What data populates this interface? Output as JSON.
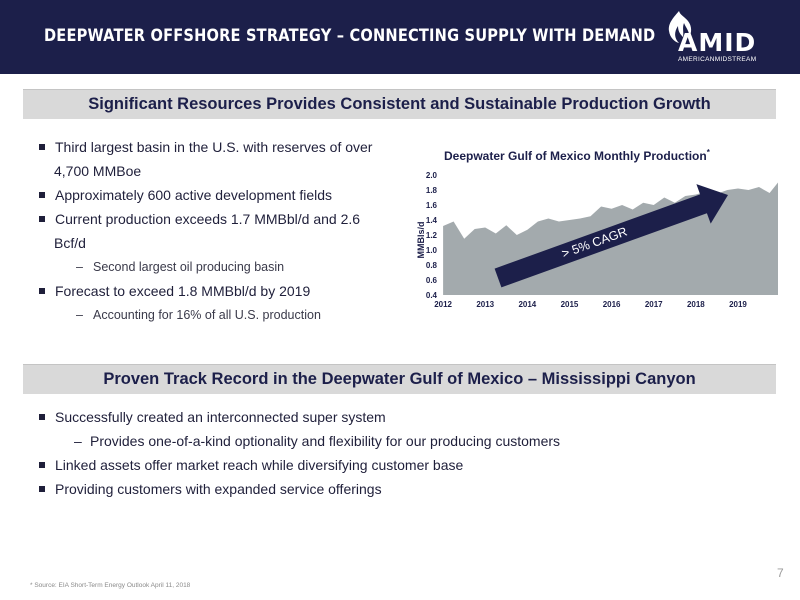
{
  "header": {
    "title": "DEEPWATER OFFSHORE STRATEGY – CONNECTING SUPPLY WITH DEMAND",
    "logo_text": "AMID",
    "logo_subtext": "AMERICANMIDSTREAM"
  },
  "section1": {
    "heading": "Significant Resources Provides Consistent and Sustainable Production Growth",
    "bullets": [
      "Third largest basin in the U.S. with reserves of over",
      "4,700 MMBoe",
      "Approximately 600 active development fields",
      "Current production exceeds 1.7 MMBbl/d and 2.6",
      "Bcf/d",
      "Second largest oil producing basin",
      "Forecast to exceed 1.8 MMBbl/d by 2019",
      "Accounting for 16% of all U.S. production"
    ]
  },
  "chart_data": {
    "type": "area",
    "title": "Deepwater Gulf of Mexico Monthly Production",
    "title_marker": "*",
    "ylabel": "MMBls/d",
    "xlabel": "",
    "ylim": [
      0.4,
      2.0
    ],
    "yticks": [
      "2.0",
      "1.8",
      "1.6",
      "1.4",
      "1.2",
      "1.0",
      "0.8",
      "0.6",
      "0.4"
    ],
    "xticks": [
      "2012",
      "2013",
      "2014",
      "2015",
      "2016",
      "2017",
      "2018",
      "2019"
    ],
    "grid": false,
    "annotation": "> 5% CAGR",
    "series_color": "#a3aaad",
    "arrow_color": "#1c1f4a",
    "x": [
      2012.0,
      2012.25,
      2012.5,
      2012.75,
      2013.0,
      2013.25,
      2013.5,
      2013.75,
      2014.0,
      2014.25,
      2014.5,
      2014.75,
      2015.0,
      2015.25,
      2015.5,
      2015.75,
      2016.0,
      2016.25,
      2016.5,
      2016.75,
      2017.0,
      2017.25,
      2017.5,
      2017.75,
      2018.0,
      2018.25,
      2018.5,
      2018.75,
      2019.0,
      2019.25,
      2019.5,
      2019.75,
      2019.95
    ],
    "values": [
      1.32,
      1.38,
      1.15,
      1.28,
      1.3,
      1.22,
      1.33,
      1.2,
      1.27,
      1.38,
      1.42,
      1.38,
      1.4,
      1.42,
      1.45,
      1.58,
      1.55,
      1.6,
      1.54,
      1.63,
      1.6,
      1.7,
      1.63,
      1.72,
      1.74,
      1.78,
      1.75,
      1.8,
      1.82,
      1.8,
      1.84,
      1.76,
      1.9
    ]
  },
  "section2": {
    "heading": "Proven Track Record in the Deepwater Gulf of Mexico – Mississippi Canyon",
    "bullets": [
      "Successfully created an interconnected super system",
      "Provides one-of-a-kind optionality and flexibility for our producing customers",
      "Linked assets offer market reach while diversifying customer base",
      "Providing customers with expanded service offerings"
    ]
  },
  "footer": {
    "footnote": "* Source: EIA Short-Term Energy Outlook April 11, 2018",
    "page_number": "7"
  }
}
